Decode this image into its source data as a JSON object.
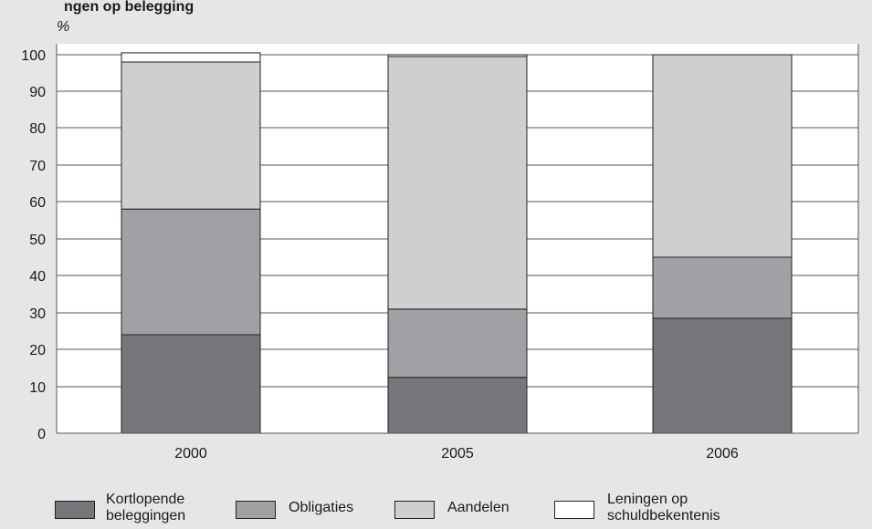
{
  "chart_data": {
    "type": "bar",
    "stacked": true,
    "title": "",
    "ylabel": "%",
    "xlabel": "",
    "ylim": [
      0,
      100
    ],
    "yticks": [
      0,
      10,
      20,
      30,
      40,
      50,
      60,
      70,
      80,
      90,
      100
    ],
    "grid": true,
    "legend_position": "bottom",
    "categories": [
      "2000",
      "2005",
      "2006"
    ],
    "series": [
      {
        "name": "Kortlopende\nbeleggingen",
        "color": "#76777a",
        "values": [
          24,
          12.5,
          28.5
        ]
      },
      {
        "name": "Obligaties",
        "color": "#a0a1a4",
        "values": [
          34,
          18.5,
          16.5
        ]
      },
      {
        "name": "Aandelen",
        "color": "#cfcfd0",
        "values": [
          40,
          68.5,
          55
        ]
      },
      {
        "name": "Leningen op\nschuldbekentenis",
        "color": "#ffffff",
        "values": [
          2.5,
          0.5,
          0
        ]
      }
    ]
  },
  "header_text": "ngen op belegging"
}
